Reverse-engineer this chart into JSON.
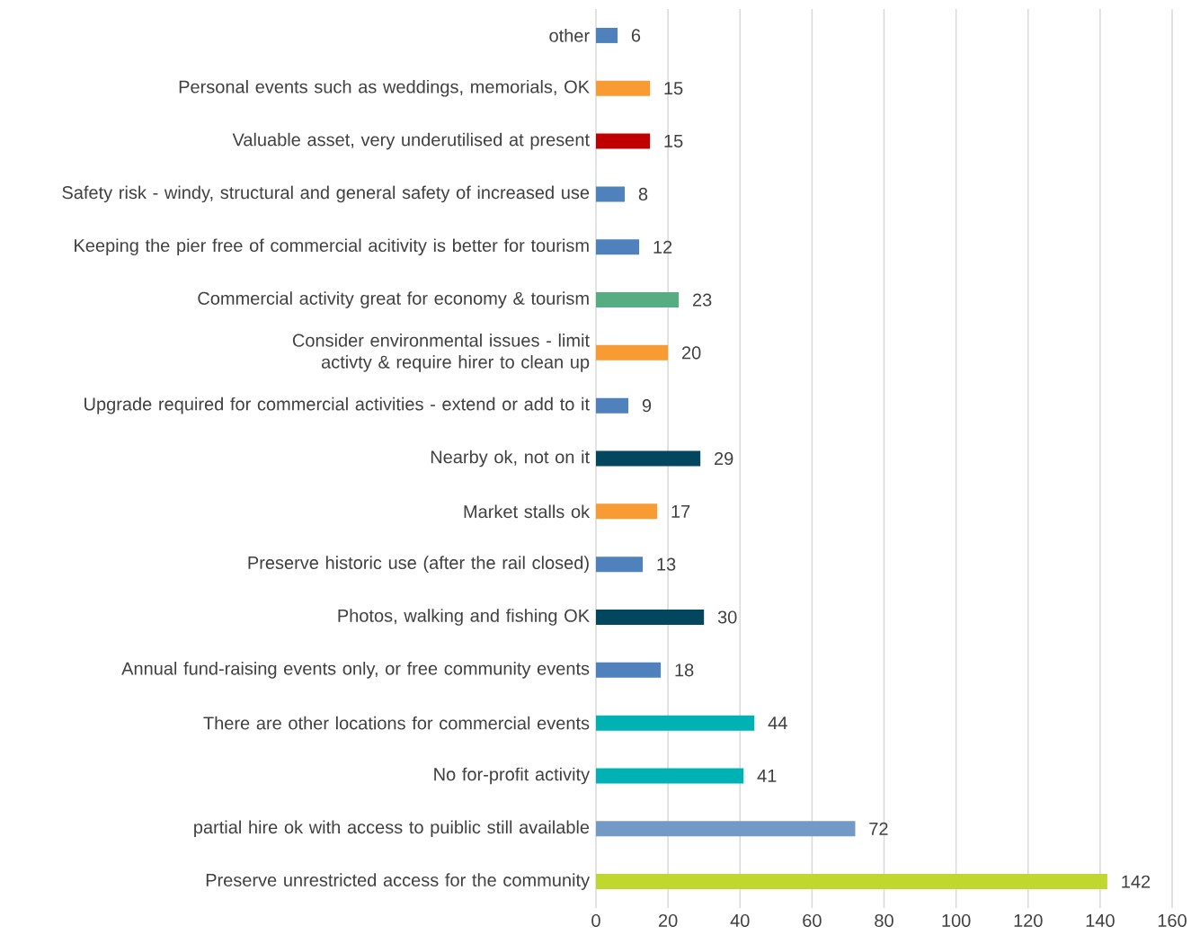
{
  "chart_data": {
    "type": "bar",
    "orientation": "horizontal",
    "categories": [
      "other",
      "Personal events such as weddings, memorials, OK",
      "Valuable asset, very underutilised at present",
      "Safety risk - windy, structural and general safety of increased use",
      "Keeping the pier free of commercial acitivity is better for tourism",
      "Commercial activity great for economy & tourism",
      "Consider environmental issues - limit activty & require hirer to clean up",
      "Upgrade required for commercial activities - extend or add to it",
      "Nearby ok, not on it",
      "Market stalls ok",
      "Preserve historic use (after the rail closed)",
      "Photos, walking and fishing OK",
      "Annual fund-raising events only, or free community events",
      "There are other locations for commercial events",
      "No for-profit activity",
      "partial hire ok with access to puiblic still available",
      "Preserve unrestricted access for the community"
    ],
    "values": [
      6,
      15,
      15,
      8,
      12,
      23,
      20,
      9,
      29,
      17,
      13,
      30,
      18,
      44,
      41,
      72,
      142
    ],
    "colors": [
      "#4f81bd",
      "#f79b32",
      "#c00000",
      "#4f81bd",
      "#4f81bd",
      "#57ad82",
      "#f79b32",
      "#4f81bd",
      "#02475e",
      "#f79b32",
      "#4f81bd",
      "#02475e",
      "#4f81bd",
      "#00b2b3",
      "#00b2b3",
      "#7399c6",
      "#c0d72f"
    ],
    "xlim": [
      0,
      160
    ],
    "xticks": [
      0,
      20,
      40,
      60,
      80,
      100,
      120,
      140,
      160
    ],
    "grid": "x",
    "data_labels": true
  }
}
